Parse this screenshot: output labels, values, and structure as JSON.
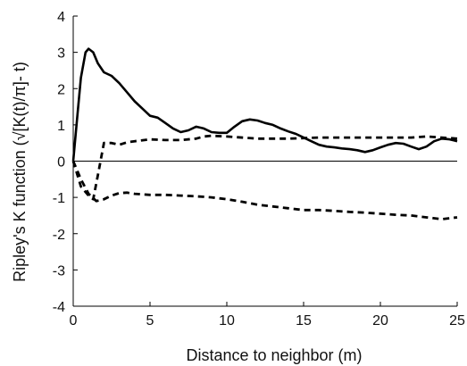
{
  "chart_data": {
    "type": "line",
    "title": "",
    "xlabel": "Distance to neighbor (m)",
    "ylabel": "Ripley's K function (√[K(t)/π]- t)",
    "xlim": [
      0,
      25
    ],
    "ylim": [
      -4,
      4
    ],
    "x_ticks": [
      "0",
      "5",
      "10",
      "15",
      "20",
      "25"
    ],
    "y_ticks": [
      "4",
      "3",
      "2",
      "1",
      "0",
      "-1",
      "-2",
      "-3",
      "-4"
    ],
    "grid": false,
    "legend": "none",
    "reference_line_y": 0,
    "series": [
      {
        "style": "solid",
        "color": "#000000",
        "x": [
          0,
          0.3,
          0.5,
          0.8,
          1.0,
          1.3,
          1.6,
          2.0,
          2.5,
          3.0,
          3.5,
          4.0,
          4.5,
          5.0,
          5.5,
          6.0,
          6.5,
          7.0,
          7.5,
          8.0,
          8.5,
          9.0,
          9.5,
          10.0,
          10.5,
          11.0,
          11.5,
          12.0,
          12.5,
          13.0,
          13.5,
          14.0,
          14.5,
          15.0,
          15.5,
          16.0,
          16.5,
          17.0,
          17.5,
          18.0,
          18.5,
          19.0,
          19.5,
          20.0,
          20.5,
          21.0,
          21.5,
          22.0,
          22.5,
          23.0,
          23.5,
          24.0,
          24.5,
          25.0
        ],
        "values": [
          0,
          1.4,
          2.3,
          3.0,
          3.1,
          3.0,
          2.7,
          2.45,
          2.35,
          2.15,
          1.9,
          1.65,
          1.45,
          1.25,
          1.2,
          1.05,
          0.9,
          0.8,
          0.85,
          0.95,
          0.9,
          0.8,
          0.78,
          0.78,
          0.95,
          1.1,
          1.15,
          1.12,
          1.05,
          1.0,
          0.9,
          0.82,
          0.75,
          0.65,
          0.55,
          0.45,
          0.4,
          0.38,
          0.35,
          0.33,
          0.3,
          0.25,
          0.3,
          0.38,
          0.45,
          0.5,
          0.48,
          0.4,
          0.33,
          0.4,
          0.55,
          0.62,
          0.6,
          0.55
        ]
      },
      {
        "style": "dashed",
        "color": "#000000",
        "x": [
          0,
          0.5,
          1.0,
          1.3,
          1.6,
          2.0,
          2.5,
          3.0,
          3.5,
          4.0,
          5.0,
          6.0,
          7.0,
          8.0,
          8.5,
          9.0,
          10.0,
          12.0,
          14.0,
          16.0,
          18.0,
          20.0,
          22.0,
          23.0,
          24.0,
          25.0
        ],
        "values": [
          0,
          -0.7,
          -0.95,
          -1.05,
          -0.4,
          0.5,
          0.5,
          0.45,
          0.52,
          0.55,
          0.6,
          0.58,
          0.58,
          0.62,
          0.68,
          0.7,
          0.68,
          0.62,
          0.62,
          0.65,
          0.65,
          0.65,
          0.65,
          0.68,
          0.65,
          0.62
        ]
      },
      {
        "style": "dashed",
        "color": "#000000",
        "x": [
          0,
          0.5,
          1.0,
          1.5,
          2.0,
          2.5,
          3.0,
          3.5,
          4.0,
          5.0,
          6.0,
          7.0,
          8.0,
          9.0,
          10.0,
          11.0,
          12.0,
          13.0,
          14.0,
          15.0,
          16.0,
          17.0,
          18.0,
          19.0,
          20.0,
          21.0,
          22.0,
          23.0,
          24.0,
          25.0
        ],
        "values": [
          0,
          -0.5,
          -0.9,
          -1.1,
          -1.05,
          -0.95,
          -0.88,
          -0.87,
          -0.9,
          -0.93,
          -0.93,
          -0.95,
          -0.97,
          -1.0,
          -1.05,
          -1.12,
          -1.2,
          -1.25,
          -1.3,
          -1.35,
          -1.35,
          -1.37,
          -1.4,
          -1.42,
          -1.45,
          -1.48,
          -1.5,
          -1.55,
          -1.6,
          -1.55
        ]
      }
    ]
  }
}
